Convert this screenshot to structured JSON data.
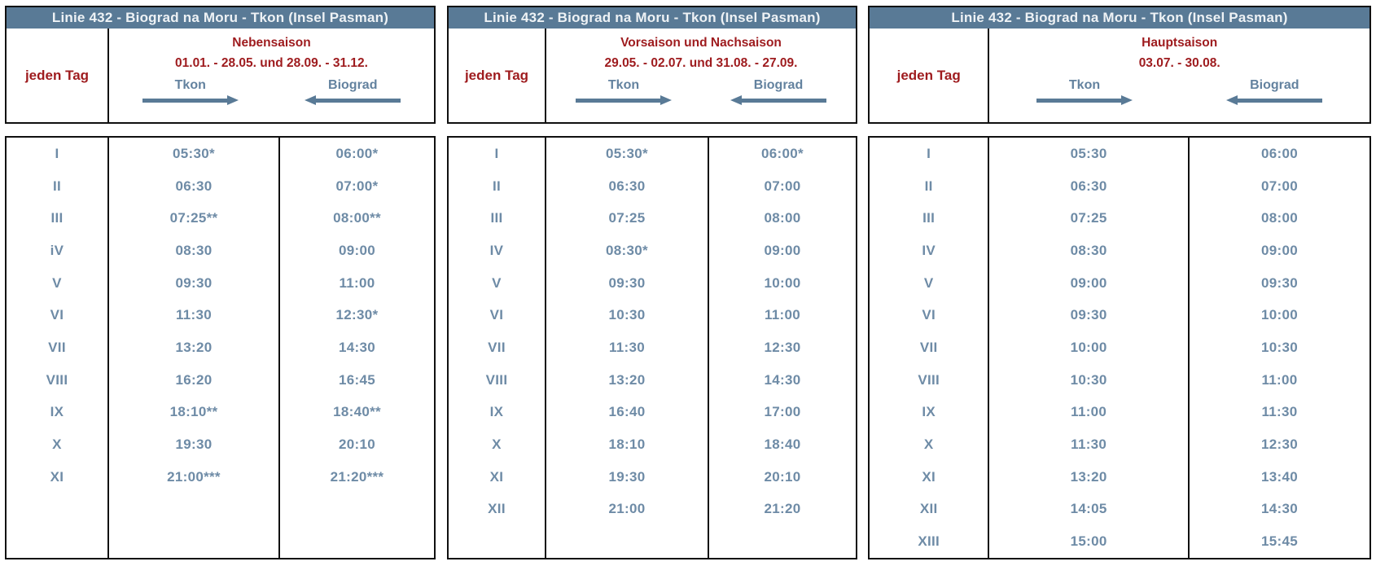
{
  "colors": {
    "title_bar_bg": "#597a96",
    "title_text": "#eef2f5",
    "season_red": "#9e1b1e",
    "time_blue": "#6e8ba6",
    "arrow_blue": "#597a96",
    "border_black": "#101010"
  },
  "tables": [
    {
      "title": "Linie 432 - Biograd na Moru - Tkon (Insel Pasman)",
      "day_label": "jeden Tag",
      "season": "Nebensaison",
      "dates": "01.01. - 28.05. und 28.09. - 31.12.",
      "dir_tkon": "Tkon",
      "dir_biograd": "Biograd",
      "rows": [
        [
          "I",
          "05:30*",
          "06:00*"
        ],
        [
          "II",
          "06:30",
          "07:00*"
        ],
        [
          "III",
          "07:25**",
          "08:00**"
        ],
        [
          "iV",
          "08:30",
          "09:00"
        ],
        [
          "V",
          "09:30",
          "11:00"
        ],
        [
          "VI",
          "11:30",
          "12:30*"
        ],
        [
          "VII",
          "13:20",
          "14:30"
        ],
        [
          "VIII",
          "16:20",
          "16:45"
        ],
        [
          "IX",
          "18:10**",
          "18:40**"
        ],
        [
          "X",
          "19:30",
          "20:10"
        ],
        [
          "XI",
          "21:00***",
          "21:20***"
        ]
      ]
    },
    {
      "title": "Linie 432 - Biograd na Moru - Tkon (Insel Pasman)",
      "day_label": "jeden Tag",
      "season": "Vorsaison und Nachsaison",
      "dates": "29.05. - 02.07. und 31.08. - 27.09.",
      "dir_tkon": "Tkon",
      "dir_biograd": "Biograd",
      "rows": [
        [
          "I",
          "05:30*",
          "06:00*"
        ],
        [
          "II",
          "06:30",
          "07:00"
        ],
        [
          "III",
          "07:25",
          "08:00"
        ],
        [
          "IV",
          "08:30*",
          "09:00"
        ],
        [
          "V",
          "09:30",
          "10:00"
        ],
        [
          "VI",
          "10:30",
          "11:00"
        ],
        [
          "VII",
          "11:30",
          "12:30"
        ],
        [
          "VIII",
          "13:20",
          "14:30"
        ],
        [
          "IX",
          "16:40",
          "17:00"
        ],
        [
          "X",
          "18:10",
          "18:40"
        ],
        [
          "XI",
          "19:30",
          "20:10"
        ],
        [
          "XII",
          "21:00",
          "21:20"
        ]
      ]
    },
    {
      "title": "Linie 432 - Biograd na Moru - Tkon (Insel Pasman)",
      "day_label": "jeden Tag",
      "season": "Hauptsaison",
      "dates": "03.07. - 30.08.",
      "dir_tkon": "Tkon",
      "dir_biograd": "Biograd",
      "rows": [
        [
          "I",
          "05:30",
          "06:00"
        ],
        [
          "II",
          "06:30",
          "07:00"
        ],
        [
          "III",
          "07:25",
          "08:00"
        ],
        [
          "IV",
          "08:30",
          "09:00"
        ],
        [
          "V",
          "09:00",
          "09:30"
        ],
        [
          "VI",
          "09:30",
          "10:00"
        ],
        [
          "VII",
          "10:00",
          "10:30"
        ],
        [
          "VIII",
          "10:30",
          "11:00"
        ],
        [
          "IX",
          "11:00",
          "11:30"
        ],
        [
          "X",
          "11:30",
          "12:30"
        ],
        [
          "XI",
          "13:20",
          "13:40"
        ],
        [
          "XII",
          "14:05",
          "14:30"
        ],
        [
          "XIII",
          "15:00",
          "15:45"
        ]
      ]
    }
  ]
}
